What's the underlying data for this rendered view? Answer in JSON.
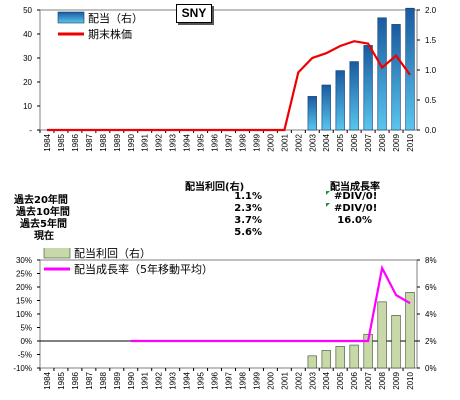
{
  "badge": "SNY",
  "chart_data": [
    {
      "type": "bar",
      "categories": [
        "1984",
        "1985",
        "1986",
        "1987",
        "1988",
        "1989",
        "1990",
        "1991",
        "1992",
        "1993",
        "1994",
        "1995",
        "1996",
        "1997",
        "1998",
        "1999",
        "2000",
        "2001",
        "2002",
        "2003",
        "2004",
        "2005",
        "2006",
        "2007",
        "2008",
        "2009",
        "2010"
      ],
      "series": [
        {
          "name": "配当（右）",
          "type": "bar",
          "axis": "right",
          "values": [
            null,
            null,
            null,
            null,
            null,
            null,
            null,
            null,
            null,
            null,
            null,
            null,
            null,
            null,
            null,
            null,
            null,
            null,
            null,
            0.56,
            0.75,
            0.99,
            1.14,
            1.41,
            1.87,
            1.76,
            2.03
          ]
        },
        {
          "name": "期末株価",
          "type": "line",
          "axis": "left",
          "values": [
            0,
            0,
            0,
            0,
            0,
            0,
            0,
            0,
            0,
            0,
            0,
            0,
            0,
            0,
            0,
            0,
            0,
            0,
            24,
            30,
            32,
            35,
            37,
            36,
            26,
            31,
            23
          ]
        }
      ],
      "left_axis": {
        "ticks": [
          "50",
          "40",
          "30",
          "20",
          "10",
          "-"
        ],
        "ylim": [
          0,
          50
        ]
      },
      "right_axis": {
        "ticks": [
          "2.0",
          "1.5",
          "1.0",
          "0.5",
          "0.0"
        ],
        "ylim": [
          0,
          2.0
        ]
      },
      "legend_position": "top-left"
    },
    {
      "type": "bar",
      "categories": [
        "1984",
        "1985",
        "1986",
        "1987",
        "1988",
        "1989",
        "1990",
        "1991",
        "1992",
        "1993",
        "1994",
        "1995",
        "1996",
        "1997",
        "1998",
        "1999",
        "2000",
        "2001",
        "2002",
        "2003",
        "2004",
        "2005",
        "2006",
        "2007",
        "2008",
        "2009",
        "2010"
      ],
      "series": [
        {
          "name": "配当利回（右）",
          "type": "bar",
          "axis": "right",
          "values": [
            null,
            null,
            null,
            null,
            null,
            null,
            null,
            null,
            null,
            null,
            null,
            null,
            null,
            null,
            null,
            null,
            null,
            null,
            null,
            0.9,
            1.3,
            1.6,
            1.7,
            2.5,
            4.9,
            3.9,
            5.6
          ]
        },
        {
          "name": "配当成長率（5年移動平均）",
          "type": "line",
          "axis": "left",
          "values": [
            null,
            null,
            null,
            null,
            null,
            null,
            0,
            0,
            0,
            0,
            0,
            0,
            0,
            0,
            0,
            0,
            0,
            0,
            0,
            0,
            0,
            0,
            0,
            0,
            27,
            17,
            14
          ]
        }
      ],
      "left_axis": {
        "ticks": [
          "30%",
          "25%",
          "20%",
          "15%",
          "10%",
          "5%",
          "0%",
          "-5%",
          "-10%"
        ],
        "ylim": [
          -10,
          30
        ]
      },
      "right_axis": {
        "ticks": [
          "8%",
          "6%",
          "4%",
          "2%",
          "0%"
        ],
        "ylim": [
          0,
          8
        ]
      },
      "legend_position": "top-left"
    }
  ],
  "stats": {
    "col1_header": "配当利回(右)",
    "col2_header": "配当成長率",
    "rows": [
      {
        "label": "過去20年間",
        "yield": "1.1%",
        "growth": "#DIV/0!"
      },
      {
        "label": "過去10年間",
        "yield": "2.3%",
        "growth": "#DIV/0!"
      },
      {
        "label": "過去5年間",
        "yield": "3.7%",
        "growth": "16.0%"
      },
      {
        "label": "現在",
        "yield": "5.6%",
        "growth": ""
      }
    ]
  },
  "colors": {
    "bar_top": "#1a5aa0",
    "bar_light": "#59c6ee",
    "line_red": "#ee0000",
    "line_magenta": "#ff00ff",
    "bar2_fill": "#c8d8a8",
    "bar2_stroke": "#3a4a2a",
    "flag": "#1a9a2a"
  }
}
